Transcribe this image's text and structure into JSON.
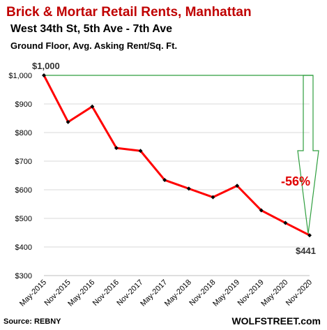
{
  "header": {
    "title": "Brick & Mortar Retail Rents, Manhattan",
    "subtitle": "West 34th St, 5th Ave - 7th Ave",
    "subtitle2": "Ground Floor, Avg. Asking Rent/Sq. Ft."
  },
  "footer": {
    "source": "Source: REBNY",
    "brand": "WOLFSTREET.com"
  },
  "annotations": {
    "start_label": "$1,000",
    "end_label": "$441",
    "change_label": "-56%"
  },
  "colors": {
    "title": "#c00000",
    "line": "#ff0000",
    "marker": "#000000",
    "arrow": "#2e9e3e",
    "grid": "#d9d9d9",
    "change": "#e00000"
  },
  "chart_data": {
    "type": "line",
    "title": "Brick & Mortar Retail Rents, Manhattan",
    "categories": [
      "May-2015",
      "Nov-2015",
      "May-2016",
      "Nov-2016",
      "Nov-2017",
      "May-2017",
      "May-2018",
      "Nov-2018",
      "May-2019",
      "Nov-2019",
      "May-2020",
      "Nov-2020"
    ],
    "series": [
      {
        "values": [
          1000,
          837,
          891,
          746,
          736,
          634,
          604,
          574,
          614,
          528,
          484,
          441
        ]
      }
    ],
    "yticks": [
      "$300",
      "$400",
      "$500",
      "$600",
      "$700",
      "$800",
      "$900",
      "$1,000"
    ],
    "ylim": [
      300,
      1000
    ],
    "grid": true,
    "legend": "none"
  }
}
